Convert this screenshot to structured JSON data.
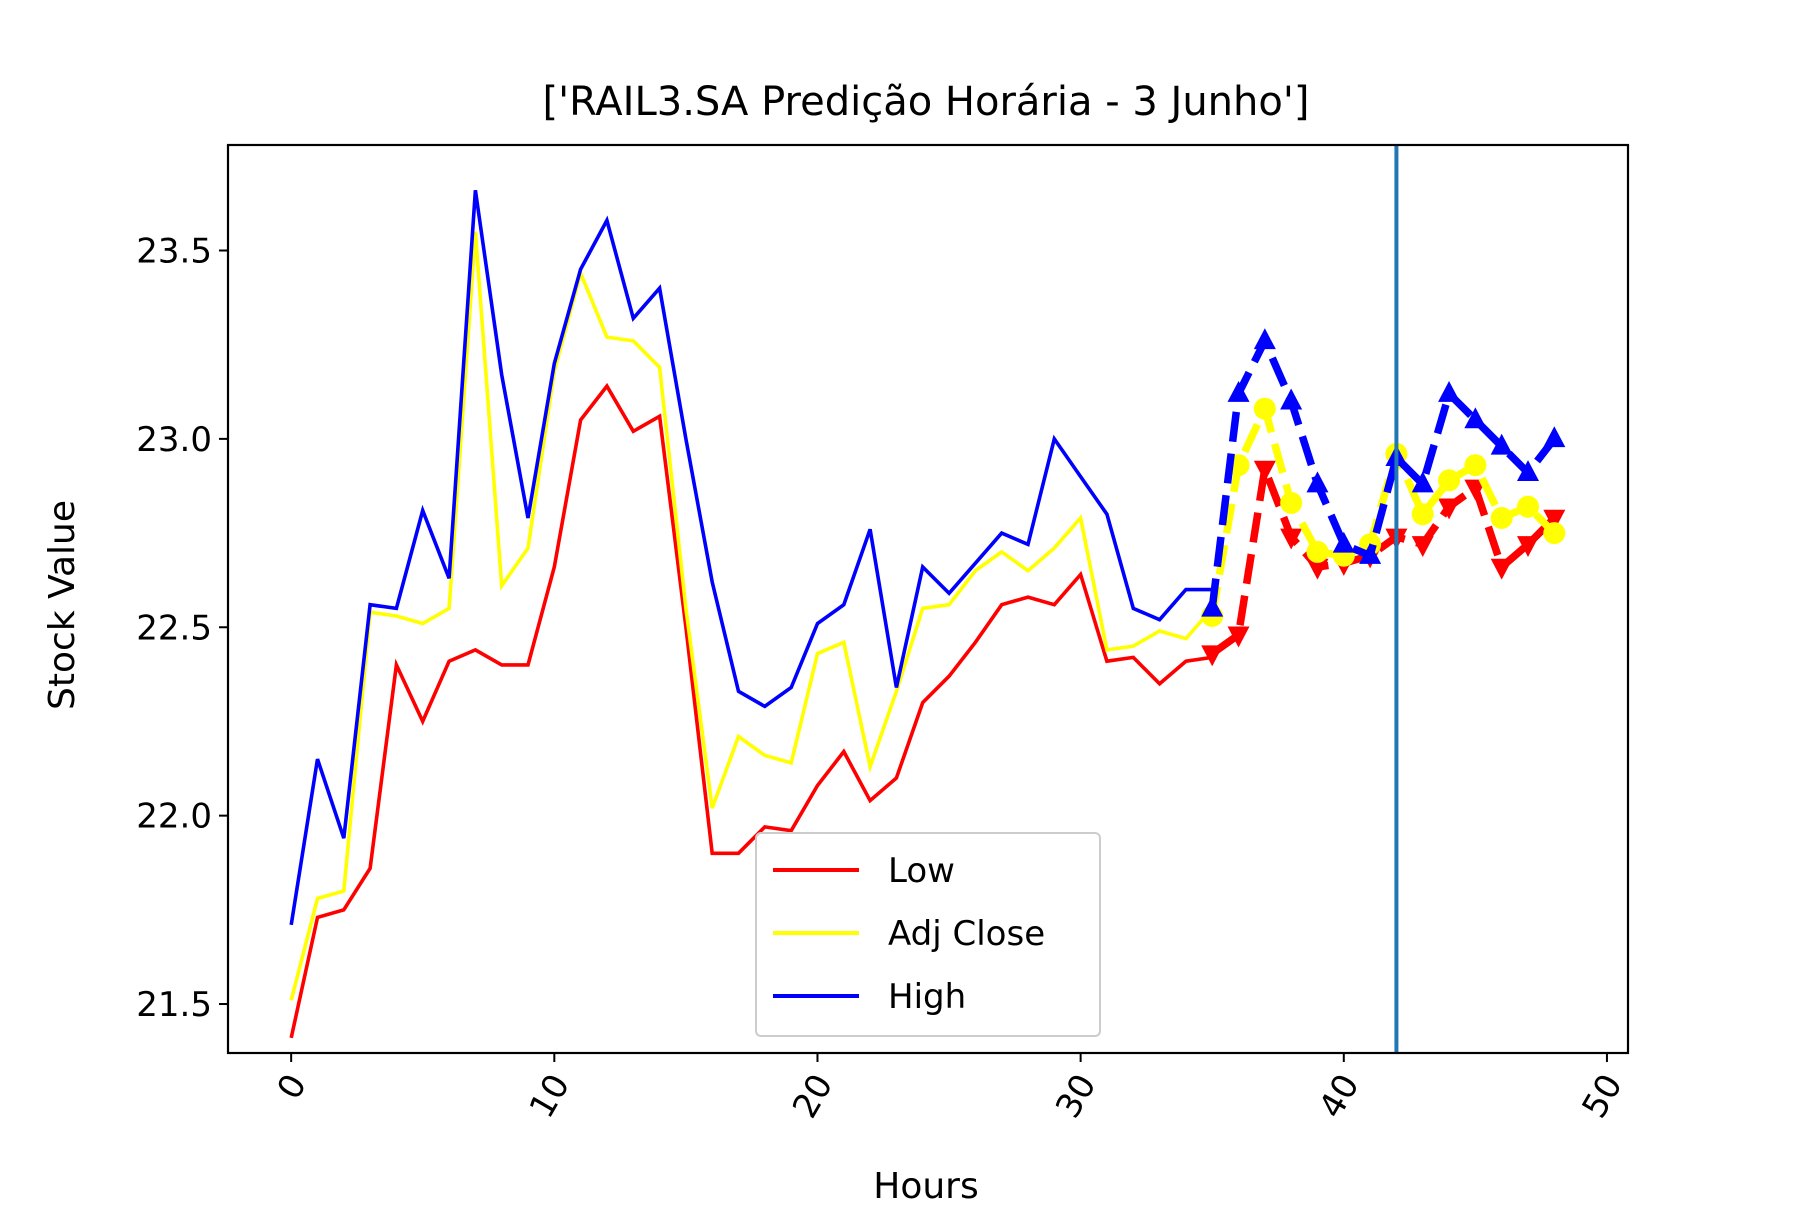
{
  "chart_data": {
    "type": "line",
    "title": "['RAIL3.SA Predição Horária - 3 Junho']",
    "xlabel": "Hours",
    "ylabel": "Stock Value",
    "xlim": [
      -2.4,
      50.8
    ],
    "ylim": [
      21.37,
      23.78
    ],
    "xticks": [
      0,
      10,
      20,
      30,
      40,
      50
    ],
    "xtick_labels": [
      "0",
      "10",
      "20",
      "30",
      "40",
      "50"
    ],
    "yticks": [
      21.5,
      22.0,
      22.5,
      23.0,
      23.5
    ],
    "ytick_labels": [
      "21.5",
      "22.0",
      "22.5",
      "23.0",
      "23.5"
    ],
    "grid": false,
    "legend_position": "lower-center",
    "vertical_line": {
      "x": 42,
      "color": "#1f77b4"
    },
    "series": [
      {
        "name": "Low",
        "color": "#ff0000",
        "x": [
          0,
          1,
          2,
          3,
          4,
          5,
          6,
          7,
          8,
          9,
          10,
          11,
          12,
          13,
          14,
          15,
          16,
          17,
          18,
          19,
          20,
          21,
          22,
          23,
          24,
          25,
          26,
          27,
          28,
          29,
          30,
          31,
          32,
          33,
          34,
          35
        ],
        "values": [
          21.41,
          21.73,
          21.75,
          21.86,
          22.4,
          22.25,
          22.41,
          22.44,
          22.4,
          22.4,
          22.66,
          23.05,
          23.14,
          23.02,
          23.06,
          22.5,
          21.9,
          21.9,
          21.97,
          21.96,
          22.08,
          22.17,
          22.04,
          22.1,
          22.3,
          22.37,
          22.46,
          22.56,
          22.58,
          22.56,
          22.64,
          22.41,
          22.42,
          22.35,
          22.41,
          22.42
        ]
      },
      {
        "name": "Adj Close",
        "color": "#ffff00",
        "x": [
          0,
          1,
          2,
          3,
          4,
          5,
          6,
          7,
          8,
          9,
          10,
          11,
          12,
          13,
          14,
          15,
          16,
          17,
          18,
          19,
          20,
          21,
          22,
          23,
          24,
          25,
          26,
          27,
          28,
          29,
          30,
          31,
          32,
          33,
          34,
          35
        ],
        "values": [
          21.51,
          21.78,
          21.8,
          22.54,
          22.53,
          22.51,
          22.55,
          23.55,
          22.61,
          22.71,
          23.18,
          23.44,
          23.27,
          23.26,
          23.19,
          22.55,
          22.02,
          22.21,
          22.16,
          22.14,
          22.43,
          22.46,
          22.13,
          22.33,
          22.55,
          22.56,
          22.65,
          22.7,
          22.65,
          22.71,
          22.79,
          22.44,
          22.45,
          22.49,
          22.47,
          22.55
        ]
      },
      {
        "name": "High",
        "color": "#0000ff",
        "x": [
          0,
          1,
          2,
          3,
          4,
          5,
          6,
          7,
          8,
          9,
          10,
          11,
          12,
          13,
          14,
          15,
          16,
          17,
          18,
          19,
          20,
          21,
          22,
          23,
          24,
          25,
          26,
          27,
          28,
          29,
          30,
          31,
          32,
          33,
          34,
          35
        ],
        "values": [
          21.71,
          22.15,
          21.94,
          22.56,
          22.55,
          22.81,
          22.63,
          23.66,
          23.17,
          22.79,
          23.2,
          23.45,
          23.58,
          23.32,
          23.4,
          23.0,
          22.62,
          22.33,
          22.29,
          22.34,
          22.51,
          22.56,
          22.76,
          22.34,
          22.66,
          22.59,
          22.67,
          22.75,
          22.72,
          23.0,
          22.9,
          22.8,
          22.55,
          22.52,
          22.6,
          22.6
        ]
      }
    ],
    "prediction_series": [
      {
        "color": "#ff0000",
        "marker": "triangle-down",
        "x": [
          35,
          36,
          37,
          38,
          39,
          40,
          41,
          42,
          43,
          44,
          45,
          46,
          47,
          48
        ],
        "values": [
          22.43,
          22.48,
          22.92,
          22.74,
          22.66,
          22.67,
          22.69,
          22.74,
          22.72,
          22.82,
          22.87,
          22.66,
          22.72,
          22.79
        ]
      },
      {
        "color": "#ffff00",
        "marker": "circle",
        "x": [
          35,
          36,
          37,
          38,
          39,
          40,
          41,
          42,
          43,
          44,
          45,
          46,
          47,
          48
        ],
        "values": [
          22.53,
          22.93,
          23.08,
          22.83,
          22.7,
          22.69,
          22.72,
          22.96,
          22.8,
          22.89,
          22.93,
          22.79,
          22.82,
          22.75
        ]
      },
      {
        "color": "#0000ff",
        "marker": "triangle-up",
        "x": [
          35,
          36,
          37,
          38,
          39,
          40,
          41,
          42,
          43,
          44,
          45,
          46,
          47,
          48
        ],
        "values": [
          22.55,
          23.12,
          23.26,
          23.1,
          22.88,
          22.72,
          22.69,
          22.95,
          22.88,
          23.12,
          23.05,
          22.98,
          22.91,
          23.0
        ]
      }
    ]
  }
}
